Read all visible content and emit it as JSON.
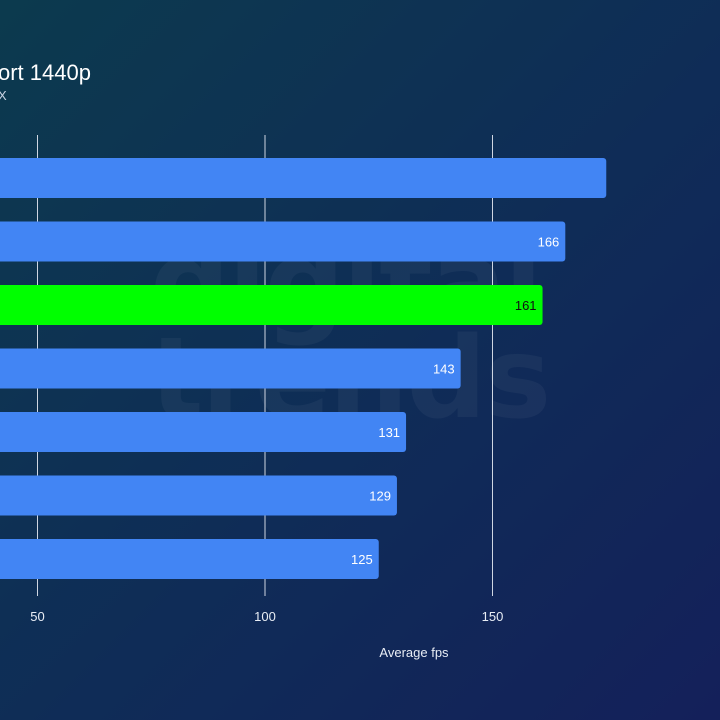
{
  "chart_data": {
    "type": "bar",
    "orientation": "horizontal",
    "title": "ort 1440p",
    "subtitle": "X",
    "xlabel": "Average fps",
    "ylabel": "",
    "xlim": [
      -83,
      182
    ],
    "xticks": [
      50,
      100,
      150
    ],
    "grid": true,
    "series": [
      {
        "values": [
          175,
          166,
          161,
          143,
          131,
          129,
          125
        ],
        "labels": [
          "",
          "166",
          "161",
          "143",
          "131",
          "129",
          "125"
        ],
        "colors": [
          "#4285f4",
          "#4285f4",
          "#00ff00",
          "#4285f4",
          "#4285f4",
          "#4285f4",
          "#4285f4"
        ]
      }
    ]
  },
  "watermark": "digital\ntrends"
}
